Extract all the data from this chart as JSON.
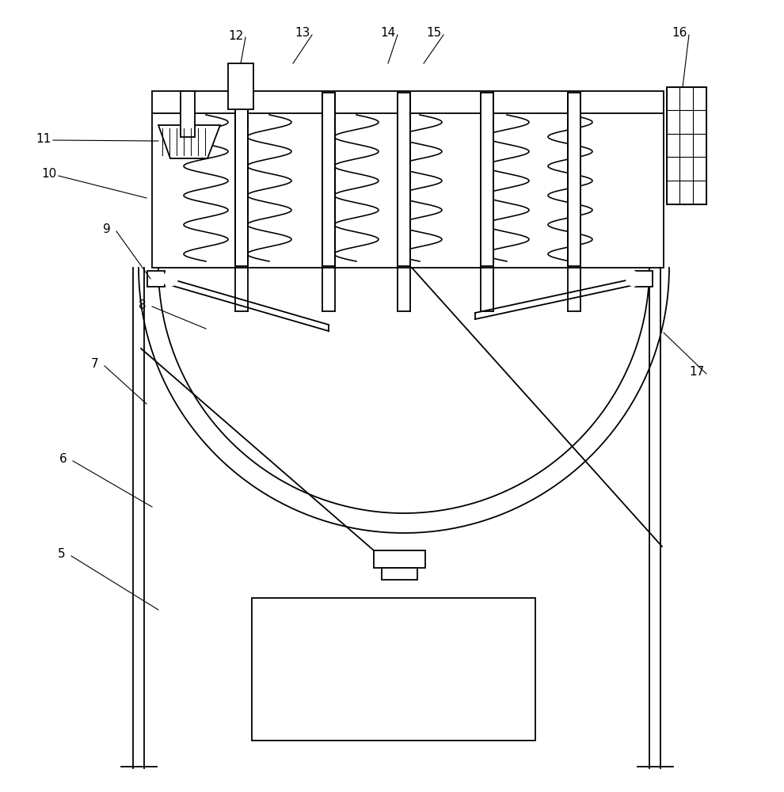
{
  "bg_color": "#ffffff",
  "line_color": "#000000",
  "lw": 1.3,
  "lw_thin": 0.8
}
